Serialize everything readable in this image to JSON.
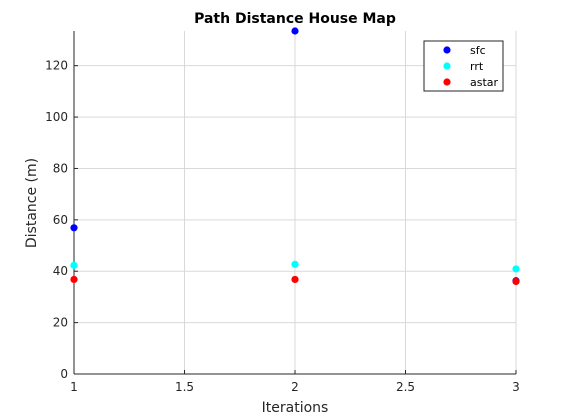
{
  "chart_data": {
    "type": "scatter",
    "title": "Path Distance House Map",
    "xlabel": "Iterations",
    "ylabel": "Distance (m)",
    "xlim": [
      1,
      3
    ],
    "ylim": [
      0,
      133.5
    ],
    "xticks": [
      1,
      1.5,
      2,
      2.5,
      3
    ],
    "xtick_labels": [
      "1",
      "1.5",
      "2",
      "2.5",
      "3"
    ],
    "yticks": [
      0,
      20,
      40,
      60,
      80,
      100,
      120
    ],
    "ytick_labels": [
      "0",
      "20",
      "40",
      "60",
      "80",
      "100",
      "120"
    ],
    "grid": true,
    "legend_position": "top-right",
    "series": [
      {
        "name": "sfc",
        "color": "#0000ff",
        "x": [
          1,
          2,
          3
        ],
        "y": [
          56.9,
          133.5,
          36.3
        ]
      },
      {
        "name": "rrt",
        "color": "#00ffff",
        "x": [
          1,
          2,
          3
        ],
        "y": [
          42.3,
          42.7,
          40.9
        ]
      },
      {
        "name": "astar",
        "color": "#ff0000",
        "x": [
          1,
          2,
          3
        ],
        "y": [
          36.8,
          36.8,
          36.0
        ]
      }
    ]
  }
}
